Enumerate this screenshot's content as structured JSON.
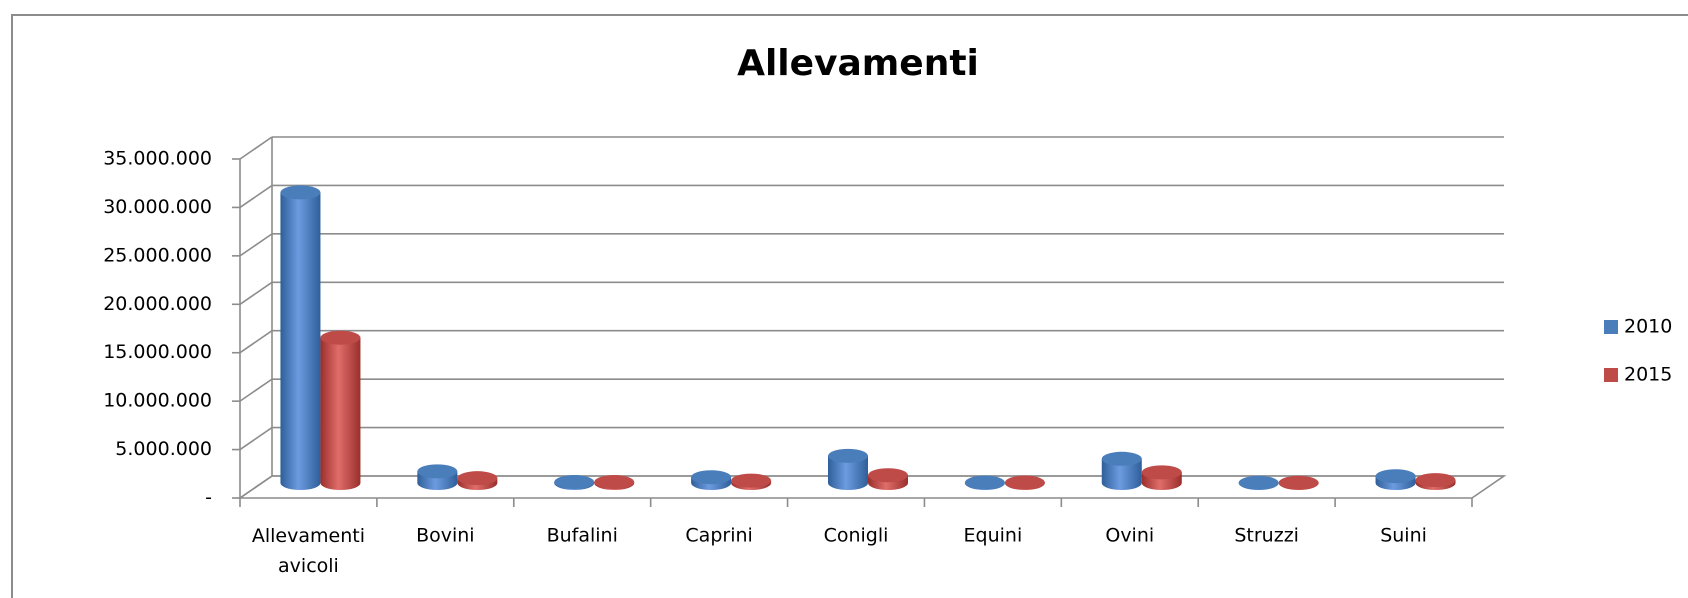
{
  "chart_data": {
    "type": "bar3d",
    "title": "Allevamenti",
    "categories": [
      "Allevamenti avicoli",
      "Bovini",
      "Bufalini",
      "Caprini",
      "Conigli",
      "Equini",
      "Ovini",
      "Struzzi",
      "Suini"
    ],
    "series": [
      {
        "name": "2010",
        "color": "#4a7ebb",
        "values": [
          30000000,
          1200000,
          100000,
          600000,
          2800000,
          50000,
          2500000,
          20000,
          700000
        ]
      },
      {
        "name": "2015",
        "color": "#be4b48",
        "values": [
          15000000,
          500000,
          100000,
          250000,
          800000,
          50000,
          1100000,
          20000,
          300000
        ]
      }
    ],
    "ylim": [
      0,
      35000000
    ],
    "yticks": [
      {
        "value": 0,
        "label": "-"
      },
      {
        "value": 5000000,
        "label": "5.000.000"
      },
      {
        "value": 10000000,
        "label": "10.000.000"
      },
      {
        "value": 15000000,
        "label": "15.000.000"
      },
      {
        "value": 20000000,
        "label": "20.000.000"
      },
      {
        "value": 25000000,
        "label": "25.000.000"
      },
      {
        "value": 30000000,
        "label": "30.000.000"
      },
      {
        "value": 35000000,
        "label": "35.000.000"
      }
    ],
    "grid": true,
    "legend": "right"
  }
}
